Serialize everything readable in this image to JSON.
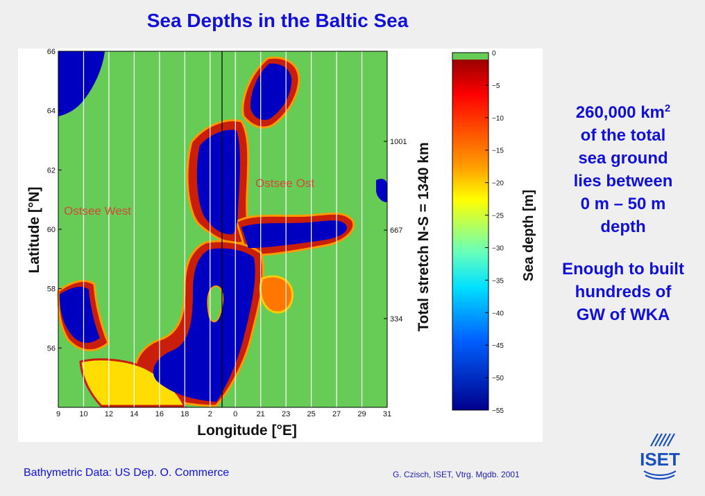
{
  "title": "Sea Depths in the Baltic Sea",
  "regions": {
    "west": "Ostsee West",
    "east": "Ostsee Ost"
  },
  "side_text": {
    "area": "260,000 km",
    "area_sup": "2",
    "line2": "of the total",
    "line3": "sea ground",
    "line4": "lies between",
    "line5": "0 m – 50 m",
    "line6": "depth",
    "note1": "Enough to built",
    "note2": "hundreds of",
    "note3": "GW of WKA"
  },
  "footer": {
    "source": "Bathymetric Data: US Dep. O. Commerce",
    "credit": "G. Czisch, ISET, Vtrg. Mgdb. 2001"
  },
  "logo_text": "ISET",
  "colors": {
    "land": "#66cc55",
    "deep": "#0000c0",
    "shallow": "#c81e0a",
    "title": "#1010d8"
  },
  "chart_data": {
    "type": "heatmap",
    "xlabel": "Longitude [°E]",
    "ylabel": "Latitude  [°N]",
    "x_ticks": [
      "9",
      "10",
      "12",
      "14",
      "16",
      "18",
      "2",
      "0",
      "21",
      "23",
      "25",
      "27",
      "29",
      "31"
    ],
    "y_ticks": [
      "66",
      "64",
      "62",
      "60",
      "58",
      "56"
    ],
    "xlim": [
      9,
      31
    ],
    "ylim": [
      54,
      66
    ],
    "secondary_axis": {
      "label": "Total stretch N-S = 1340 km",
      "ticks": [
        "1001",
        "667",
        "334"
      ]
    },
    "colorbar": {
      "label": "Sea depth [m]",
      "ticks": [
        "0",
        "−5",
        "−10",
        "−15",
        "−20",
        "−25",
        "−30",
        "−35",
        "−40",
        "−45",
        "−50",
        "−55"
      ],
      "range": [
        -55,
        0
      ],
      "colormap": "jet"
    }
  }
}
